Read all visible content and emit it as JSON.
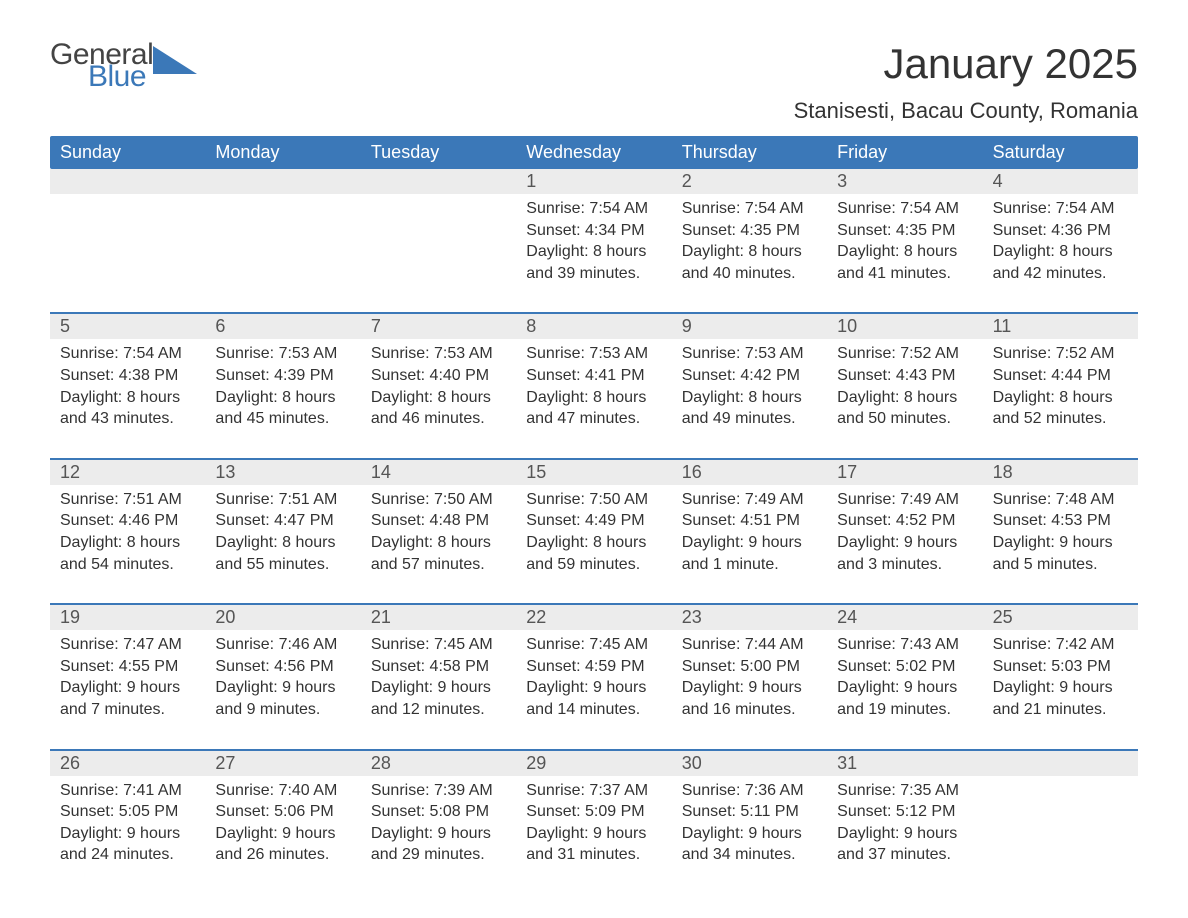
{
  "logo": {
    "word1": "General",
    "word2": "Blue"
  },
  "title": "January 2025",
  "location": "Stanisesti, Bacau County, Romania",
  "colors": {
    "header_bg": "#3b78b8",
    "header_text": "#ffffff",
    "daynum_bg": "#ececec",
    "row_border": "#3b78b8",
    "body_text": "#333333",
    "logo_blue": "#3b78b8",
    "logo_gray": "#444444",
    "background": "#ffffff"
  },
  "typography": {
    "title_fontsize": 42,
    "location_fontsize": 22,
    "header_fontsize": 18,
    "daynum_fontsize": 18,
    "cell_fontsize": 16
  },
  "weekdays": [
    "Sunday",
    "Monday",
    "Tuesday",
    "Wednesday",
    "Thursday",
    "Friday",
    "Saturday"
  ],
  "weeks": [
    [
      null,
      null,
      null,
      null,
      {
        "n": "1",
        "sunrise": "Sunrise: 7:54 AM",
        "sunset": "Sunset: 4:34 PM",
        "d1": "Daylight: 8 hours",
        "d2": "and 39 minutes."
      },
      {
        "n": "2",
        "sunrise": "Sunrise: 7:54 AM",
        "sunset": "Sunset: 4:35 PM",
        "d1": "Daylight: 8 hours",
        "d2": "and 40 minutes."
      },
      {
        "n": "3",
        "sunrise": "Sunrise: 7:54 AM",
        "sunset": "Sunset: 4:35 PM",
        "d1": "Daylight: 8 hours",
        "d2": "and 41 minutes."
      },
      {
        "n": "4",
        "sunrise": "Sunrise: 7:54 AM",
        "sunset": "Sunset: 4:36 PM",
        "d1": "Daylight: 8 hours",
        "d2": "and 42 minutes."
      }
    ],
    [
      {
        "n": "5",
        "sunrise": "Sunrise: 7:54 AM",
        "sunset": "Sunset: 4:38 PM",
        "d1": "Daylight: 8 hours",
        "d2": "and 43 minutes."
      },
      {
        "n": "6",
        "sunrise": "Sunrise: 7:53 AM",
        "sunset": "Sunset: 4:39 PM",
        "d1": "Daylight: 8 hours",
        "d2": "and 45 minutes."
      },
      {
        "n": "7",
        "sunrise": "Sunrise: 7:53 AM",
        "sunset": "Sunset: 4:40 PM",
        "d1": "Daylight: 8 hours",
        "d2": "and 46 minutes."
      },
      {
        "n": "8",
        "sunrise": "Sunrise: 7:53 AM",
        "sunset": "Sunset: 4:41 PM",
        "d1": "Daylight: 8 hours",
        "d2": "and 47 minutes."
      },
      {
        "n": "9",
        "sunrise": "Sunrise: 7:53 AM",
        "sunset": "Sunset: 4:42 PM",
        "d1": "Daylight: 8 hours",
        "d2": "and 49 minutes."
      },
      {
        "n": "10",
        "sunrise": "Sunrise: 7:52 AM",
        "sunset": "Sunset: 4:43 PM",
        "d1": "Daylight: 8 hours",
        "d2": "and 50 minutes."
      },
      {
        "n": "11",
        "sunrise": "Sunrise: 7:52 AM",
        "sunset": "Sunset: 4:44 PM",
        "d1": "Daylight: 8 hours",
        "d2": "and 52 minutes."
      }
    ],
    [
      {
        "n": "12",
        "sunrise": "Sunrise: 7:51 AM",
        "sunset": "Sunset: 4:46 PM",
        "d1": "Daylight: 8 hours",
        "d2": "and 54 minutes."
      },
      {
        "n": "13",
        "sunrise": "Sunrise: 7:51 AM",
        "sunset": "Sunset: 4:47 PM",
        "d1": "Daylight: 8 hours",
        "d2": "and 55 minutes."
      },
      {
        "n": "14",
        "sunrise": "Sunrise: 7:50 AM",
        "sunset": "Sunset: 4:48 PM",
        "d1": "Daylight: 8 hours",
        "d2": "and 57 minutes."
      },
      {
        "n": "15",
        "sunrise": "Sunrise: 7:50 AM",
        "sunset": "Sunset: 4:49 PM",
        "d1": "Daylight: 8 hours",
        "d2": "and 59 minutes."
      },
      {
        "n": "16",
        "sunrise": "Sunrise: 7:49 AM",
        "sunset": "Sunset: 4:51 PM",
        "d1": "Daylight: 9 hours",
        "d2": "and 1 minute."
      },
      {
        "n": "17",
        "sunrise": "Sunrise: 7:49 AM",
        "sunset": "Sunset: 4:52 PM",
        "d1": "Daylight: 9 hours",
        "d2": "and 3 minutes."
      },
      {
        "n": "18",
        "sunrise": "Sunrise: 7:48 AM",
        "sunset": "Sunset: 4:53 PM",
        "d1": "Daylight: 9 hours",
        "d2": "and 5 minutes."
      }
    ],
    [
      {
        "n": "19",
        "sunrise": "Sunrise: 7:47 AM",
        "sunset": "Sunset: 4:55 PM",
        "d1": "Daylight: 9 hours",
        "d2": "and 7 minutes."
      },
      {
        "n": "20",
        "sunrise": "Sunrise: 7:46 AM",
        "sunset": "Sunset: 4:56 PM",
        "d1": "Daylight: 9 hours",
        "d2": "and 9 minutes."
      },
      {
        "n": "21",
        "sunrise": "Sunrise: 7:45 AM",
        "sunset": "Sunset: 4:58 PM",
        "d1": "Daylight: 9 hours",
        "d2": "and 12 minutes."
      },
      {
        "n": "22",
        "sunrise": "Sunrise: 7:45 AM",
        "sunset": "Sunset: 4:59 PM",
        "d1": "Daylight: 9 hours",
        "d2": "and 14 minutes."
      },
      {
        "n": "23",
        "sunrise": "Sunrise: 7:44 AM",
        "sunset": "Sunset: 5:00 PM",
        "d1": "Daylight: 9 hours",
        "d2": "and 16 minutes."
      },
      {
        "n": "24",
        "sunrise": "Sunrise: 7:43 AM",
        "sunset": "Sunset: 5:02 PM",
        "d1": "Daylight: 9 hours",
        "d2": "and 19 minutes."
      },
      {
        "n": "25",
        "sunrise": "Sunrise: 7:42 AM",
        "sunset": "Sunset: 5:03 PM",
        "d1": "Daylight: 9 hours",
        "d2": "and 21 minutes."
      }
    ],
    [
      {
        "n": "26",
        "sunrise": "Sunrise: 7:41 AM",
        "sunset": "Sunset: 5:05 PM",
        "d1": "Daylight: 9 hours",
        "d2": "and 24 minutes."
      },
      {
        "n": "27",
        "sunrise": "Sunrise: 7:40 AM",
        "sunset": "Sunset: 5:06 PM",
        "d1": "Daylight: 9 hours",
        "d2": "and 26 minutes."
      },
      {
        "n": "28",
        "sunrise": "Sunrise: 7:39 AM",
        "sunset": "Sunset: 5:08 PM",
        "d1": "Daylight: 9 hours",
        "d2": "and 29 minutes."
      },
      {
        "n": "29",
        "sunrise": "Sunrise: 7:37 AM",
        "sunset": "Sunset: 5:09 PM",
        "d1": "Daylight: 9 hours",
        "d2": "and 31 minutes."
      },
      {
        "n": "30",
        "sunrise": "Sunrise: 7:36 AM",
        "sunset": "Sunset: 5:11 PM",
        "d1": "Daylight: 9 hours",
        "d2": "and 34 minutes."
      },
      {
        "n": "31",
        "sunrise": "Sunrise: 7:35 AM",
        "sunset": "Sunset: 5:12 PM",
        "d1": "Daylight: 9 hours",
        "d2": "and 37 minutes."
      },
      null
    ]
  ]
}
